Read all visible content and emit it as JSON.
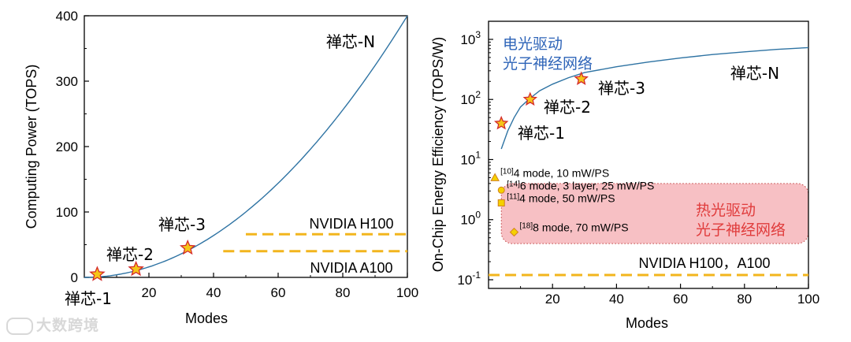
{
  "chart_data": [
    {
      "type": "line",
      "xlabel": "Modes",
      "ylabel": "Computing Power (TOPS)",
      "xlim": [
        0,
        100
      ],
      "ylim": [
        0,
        400
      ],
      "xticks": [
        "20",
        "40",
        "60",
        "80",
        "100"
      ],
      "yticks": [
        "0",
        "100",
        "200",
        "300",
        "400"
      ],
      "curve": {
        "name": "禅芯-N",
        "color": "#2e73a3",
        "x": [
          0,
          10,
          20,
          30,
          40,
          50,
          60,
          70,
          80,
          90,
          100
        ],
        "y": [
          0,
          4,
          16,
          36,
          64,
          100,
          144,
          196,
          256,
          324,
          400
        ]
      },
      "chips": [
        {
          "name": "禅芯-1",
          "x": 4,
          "y": 4.7
        },
        {
          "name": "禅芯-2",
          "x": 16,
          "y": 12.5
        },
        {
          "name": "禅芯-3",
          "x": 32,
          "y": 45
        }
      ],
      "reference_lines": [
        {
          "name": "NVIDIA H100",
          "y": 66,
          "x_from": 50,
          "x_to": 100
        },
        {
          "name": "NVIDIA A100",
          "y": 40,
          "x_from": 43,
          "x_to": 100
        }
      ],
      "curve_label": "禅芯-N"
    },
    {
      "type": "line",
      "xlabel": "Modes",
      "ylabel": "On-Chip Energy Efficiency (TOPS/W)",
      "yscale": "log",
      "xlim": [
        0,
        100
      ],
      "ylim": [
        0.1,
        2000
      ],
      "xticks": [
        "20",
        "40",
        "60",
        "80",
        "100"
      ],
      "yticks": [
        {
          "base": "10",
          "exp": "-1",
          "value": 0.1
        },
        {
          "base": "10",
          "exp": "0",
          "value": 1
        },
        {
          "base": "10",
          "exp": "1",
          "value": 10
        },
        {
          "base": "10",
          "exp": "2",
          "value": 100
        },
        {
          "base": "10",
          "exp": "3",
          "value": 1000
        }
      ],
      "curve": {
        "name": "禅芯-N",
        "color": "#2e73a3",
        "x": [
          4,
          6,
          8,
          10,
          13,
          16,
          20,
          25,
          30,
          40,
          50,
          60,
          70,
          80,
          90,
          100
        ],
        "y": [
          15,
          30,
          50,
          75,
          105,
          140,
          180,
          230,
          280,
          350,
          420,
          490,
          560,
          620,
          680,
          730
        ]
      },
      "chips": [
        {
          "name": "禅芯-1",
          "x": 4,
          "y": 40
        },
        {
          "name": "禅芯-2",
          "x": 13,
          "y": 100
        },
        {
          "name": "禅芯-3",
          "x": 29,
          "y": 220
        }
      ],
      "curve_label": "禅芯-N",
      "electro_optic_label": [
        "电光驱动",
        "光子神经网络"
      ],
      "thermo_optic_region": {
        "label": [
          "热光驱动",
          "光子神经网络"
        ],
        "y_from": 0.4,
        "y_to": 4,
        "color": "#f7c0c4"
      },
      "prior_work": [
        {
          "ref": "[10]",
          "text": "4 mode, 10 mW/PS",
          "x": 2,
          "y": 5,
          "marker": "triangle"
        },
        {
          "ref": "[14]",
          "text": "6 mode, 3 layer, 25 mW/PS",
          "x": 4,
          "y": 3.1,
          "marker": "circle"
        },
        {
          "ref": "[11]",
          "text": "4 mode, 50 mW/PS",
          "x": 4,
          "y": 1.9,
          "marker": "square"
        },
        {
          "ref": "[18]",
          "text": "8 mode, 70 mW/PS",
          "x": 8,
          "y": 0.62,
          "marker": "diamond"
        }
      ],
      "reference_lines": [
        {
          "name": "NVIDIA H100，A100",
          "y": 0.12,
          "x_from": 0,
          "x_to": 100
        }
      ]
    }
  ],
  "watermark": "大数跨境",
  "colors": {
    "curve": "#2e73a3",
    "reference": "#f2b51d",
    "star_fill": "#f5c518",
    "star_edge": "#d42a2a",
    "blue_text": "#2e64b8",
    "red_text": "#e03c3c"
  }
}
